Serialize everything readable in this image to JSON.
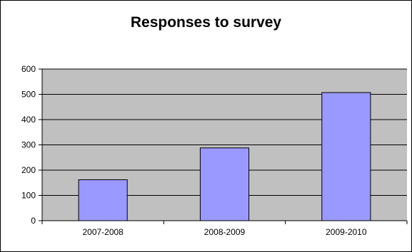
{
  "chart_data": {
    "type": "bar",
    "title": "Responses to survey",
    "categories": [
      "2007-2008",
      "2008-2009",
      "2009-2010"
    ],
    "values": [
      162,
      288,
      507
    ],
    "xlabel": "",
    "ylabel": "",
    "ylim": [
      0,
      600
    ],
    "yticks": [
      0,
      100,
      200,
      300,
      400,
      500,
      600
    ],
    "grid": true,
    "legend": "none",
    "colors": {
      "bar_fill": "#9999ff",
      "plot_background": "#c0c0c0",
      "gridline": "#000000",
      "frame": "#000000"
    }
  }
}
